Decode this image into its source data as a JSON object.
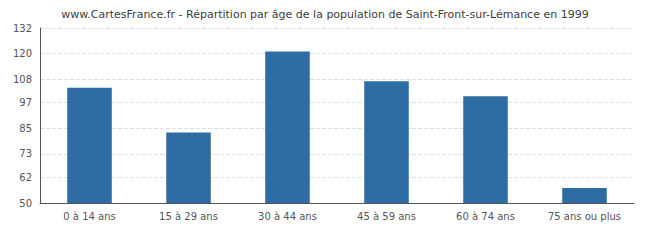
{
  "chart_data": {
    "type": "bar",
    "title": "www.CartesFrance.fr - Répartition par âge de la population de Saint-Front-sur-Lémance en 1999",
    "categories": [
      "0 à 14 ans",
      "15 à 29 ans",
      "30 à 44 ans",
      "45 à 59 ans",
      "60 à 74 ans",
      "75 ans ou plus"
    ],
    "values": [
      104,
      83,
      121,
      107,
      100,
      57
    ],
    "color": "#2e6da4",
    "ylim": [
      50,
      132
    ],
    "yticks": [
      50,
      62,
      73,
      85,
      97,
      108,
      120,
      132
    ],
    "grid": true
  }
}
